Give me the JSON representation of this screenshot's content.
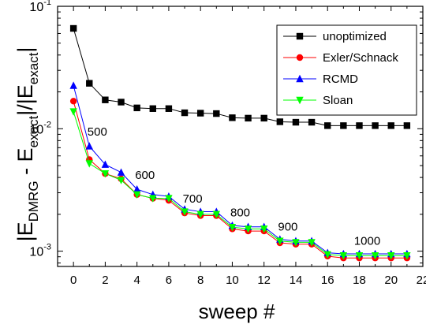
{
  "chart_data": {
    "type": "line",
    "xlabel": "sweep #",
    "ylabel_parts": {
      "open": "|E",
      "sub1": "DMRG",
      "mid": " - E",
      "sub2": "exact",
      "mid2": "|/|E",
      "sub3": "exact",
      "close": "|"
    },
    "ytick_parts": [
      {
        "base": "10",
        "exp": "-1",
        "value": 0.1
      },
      {
        "base": "10",
        "exp": "-2",
        "value": 0.01
      },
      {
        "base": "10",
        "exp": "-3",
        "value": 0.001
      }
    ],
    "y_scale": "log",
    "xlim": [
      -1,
      22
    ],
    "ylim": [
      0.00075,
      0.1
    ],
    "xticks": [
      "0",
      "2",
      "4",
      "6",
      "8",
      "10",
      "12",
      "14",
      "16",
      "18",
      "20",
      "22"
    ],
    "xtick_values": [
      0,
      2,
      4,
      6,
      8,
      10,
      12,
      14,
      16,
      18,
      20,
      22
    ],
    "x": [
      0,
      1,
      2,
      3,
      4,
      5,
      6,
      7,
      8,
      9,
      10,
      11,
      12,
      13,
      14,
      15,
      16,
      17,
      18,
      19,
      20,
      21
    ],
    "series": [
      {
        "name": "unoptimized",
        "color": "#000000",
        "marker": "square",
        "values": [
          0.066,
          0.0235,
          0.0172,
          0.0165,
          0.0148,
          0.0146,
          0.0146,
          0.0135,
          0.0134,
          0.0133,
          0.0123,
          0.0122,
          0.0122,
          0.0114,
          0.0113,
          0.0113,
          0.0106,
          0.0106,
          0.0106,
          0.0106,
          0.0106,
          0.0106
        ]
      },
      {
        "name": "Exler/Schnack",
        "color": "#ff0000",
        "marker": "circle",
        "values": [
          0.0168,
          0.0056,
          0.0043,
          0.0039,
          0.0029,
          0.0027,
          0.0026,
          0.00205,
          0.00195,
          0.00195,
          0.00152,
          0.00146,
          0.00146,
          0.00117,
          0.00114,
          0.00114,
          0.00091,
          0.00088,
          0.00088,
          0.00088,
          0.00088,
          0.00088
        ]
      },
      {
        "name": "RCMD",
        "color": "#0000ff",
        "marker": "triangle-up",
        "values": [
          0.0225,
          0.0072,
          0.0051,
          0.0044,
          0.0032,
          0.0029,
          0.0028,
          0.0022,
          0.0021,
          0.0021,
          0.00162,
          0.00158,
          0.00158,
          0.00125,
          0.00121,
          0.00121,
          0.00097,
          0.00095,
          0.00095,
          0.00095,
          0.00095,
          0.00095
        ]
      },
      {
        "name": "Sloan",
        "color": "#00ff00",
        "marker": "triangle-down",
        "values": [
          0.0138,
          0.0052,
          0.0043,
          0.0038,
          0.0029,
          0.0027,
          0.0027,
          0.0021,
          0.002,
          0.002,
          0.00157,
          0.00152,
          0.00152,
          0.00121,
          0.00118,
          0.00118,
          0.00094,
          0.00092,
          0.00092,
          0.00092,
          0.00092,
          0.00092
        ]
      }
    ],
    "annotations": [
      {
        "text": "500",
        "x": 1.5,
        "y": 0.0088
      },
      {
        "text": "600",
        "x": 4.5,
        "y": 0.0039
      },
      {
        "text": "700",
        "x": 7.5,
        "y": 0.0025
      },
      {
        "text": "800",
        "x": 10.5,
        "y": 0.00192
      },
      {
        "text": "900",
        "x": 13.5,
        "y": 0.00147
      },
      {
        "text": "1000",
        "x": 18.5,
        "y": 0.00113
      }
    ],
    "legend_position": "top-right",
    "grid": false
  }
}
